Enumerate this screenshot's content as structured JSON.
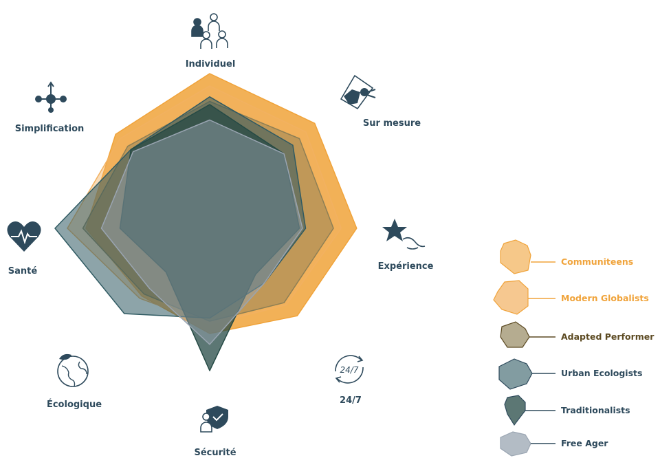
{
  "chart_data": {
    "type": "radar",
    "title": "",
    "axes": [
      "Individuel",
      "Sur mesure",
      "Expérience",
      "24/7",
      "Sécurité",
      "Écologique",
      "Santé",
      "Simplification"
    ],
    "axis_icons": [
      "people-group-icon",
      "custom-tools-icon",
      "star-hand-icon",
      "clock-24-7-icon",
      "shield-person-icon",
      "globe-leaf-icon",
      "heart-pulse-icon",
      "network-nodes-icon"
    ],
    "scale": [
      0,
      100
    ],
    "series": [
      {
        "name": "Communiteens",
        "color": "#f0a33a",
        "label_color": "#f0a33a",
        "values": [
          100,
          96,
          95,
          80,
          68,
          62,
          80,
          86
        ]
      },
      {
        "name": "Modern Globalists",
        "color": "#f2b161",
        "label_color": "#f0a33a",
        "values": [
          92,
          88,
          85,
          70,
          62,
          64,
          92,
          82
        ]
      },
      {
        "name": "Adapted Performer",
        "color": "#8d7f55",
        "label_color": "#5c4a22",
        "values": [
          82,
          82,
          80,
          68,
          60,
          60,
          82,
          75
        ]
      },
      {
        "name": "Urban Ecologists",
        "color": "#2f5a62",
        "label_color": "#2e4a5c",
        "values": [
          85,
          76,
          62,
          50,
          58,
          78,
          100,
          72
        ]
      },
      {
        "name": "Traditionalists",
        "color": "#254a45",
        "label_color": "#2e4a5c",
        "values": [
          80,
          68,
          58,
          42,
          92,
          40,
          58,
          72
        ]
      },
      {
        "name": "Free Ager",
        "color": "#9aa5b2",
        "label_color": "#2e4a5c",
        "values": [
          70,
          68,
          60,
          50,
          75,
          55,
          70,
          70
        ]
      }
    ]
  }
}
